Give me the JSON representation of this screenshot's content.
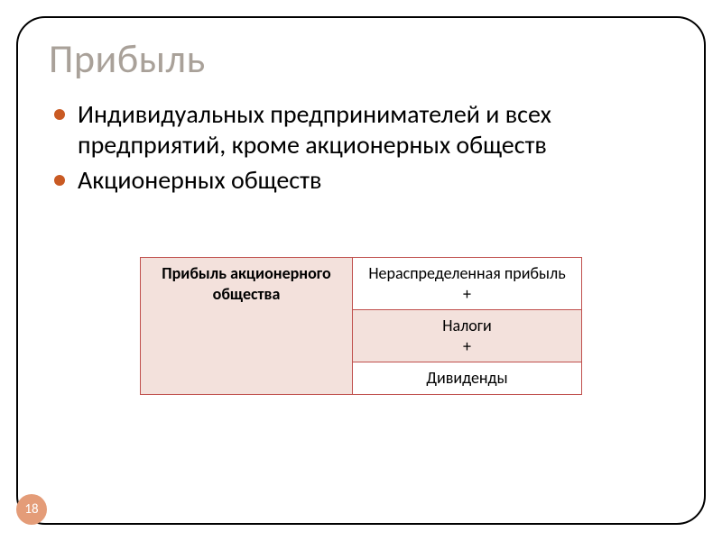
{
  "title": {
    "text": "Прибыль",
    "color": "#a9a199"
  },
  "bullets": {
    "dot_color": "#c95a23",
    "items": [
      "Индивидуальных предпринимателей и всех предприятий, кроме акционерных обществ",
      "Акционерных обществ"
    ]
  },
  "table": {
    "border_color": "#c0504d",
    "left": {
      "text": "Прибыль акционерного общества",
      "bg": "#f3e1dc"
    },
    "rows": [
      {
        "text": "Нераспределенная прибыль\n+",
        "bg": "#ffffff"
      },
      {
        "text": "Налоги\n+",
        "bg": "#f3e1dc"
      },
      {
        "text": "Дивиденды",
        "bg": "#ffffff"
      }
    ]
  },
  "page_number": {
    "value": "18",
    "bg": "#e49c78",
    "color": "#ffffff"
  }
}
